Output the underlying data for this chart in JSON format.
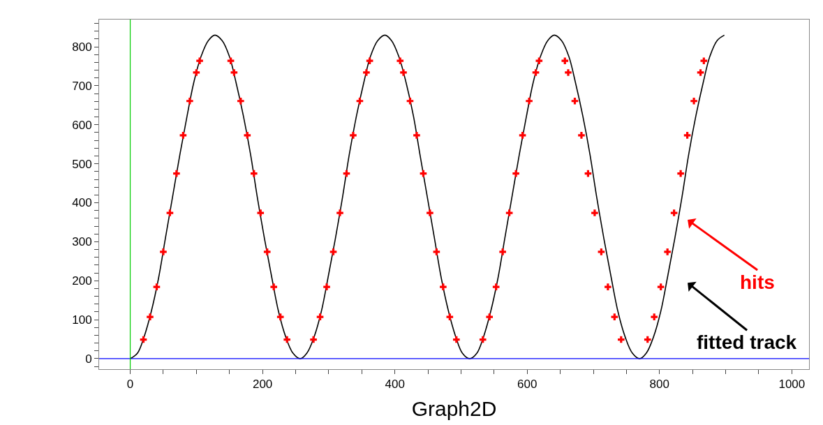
{
  "chart_data": {
    "type": "line",
    "xlabel": "Graph2D",
    "xlim": [
      -47,
      1026
    ],
    "ylim": [
      -27,
      870
    ],
    "xticks": [
      0,
      {
        "value": 50,
        "label": null
      },
      {
        "value": 100,
        "label": null
      },
      {
        "value": 150,
        "label": null
      },
      200,
      {
        "value": 250,
        "label": null
      },
      {
        "value": 300,
        "label": null
      },
      {
        "value": 350,
        "label": null
      },
      400,
      {
        "value": 450,
        "label": null
      },
      {
        "value": 500,
        "label": null
      },
      {
        "value": 550,
        "label": null
      },
      600,
      {
        "value": 650,
        "label": null
      },
      {
        "value": 700,
        "label": null
      },
      {
        "value": 750,
        "label": null
      },
      800,
      {
        "value": 850,
        "label": null
      },
      {
        "value": 900,
        "label": null
      },
      {
        "value": 950,
        "label": null
      },
      1000
    ],
    "yticks": [
      {
        "value": -20,
        "label": null
      },
      0,
      {
        "value": 20,
        "label": null
      },
      {
        "value": 40,
        "label": null
      },
      {
        "value": 60,
        "label": null
      },
      {
        "value": 80,
        "label": null
      },
      100,
      {
        "value": 120,
        "label": null
      },
      {
        "value": 140,
        "label": null
      },
      {
        "value": 160,
        "label": null
      },
      {
        "value": 180,
        "label": null
      },
      200,
      {
        "value": 220,
        "label": null
      },
      {
        "value": 240,
        "label": null
      },
      {
        "value": 260,
        "label": null
      },
      {
        "value": 280,
        "label": null
      },
      300,
      {
        "value": 320,
        "label": null
      },
      {
        "value": 340,
        "label": null
      },
      {
        "value": 360,
        "label": null
      },
      {
        "value": 380,
        "label": null
      },
      400,
      {
        "value": 420,
        "label": null
      },
      {
        "value": 440,
        "label": null
      },
      {
        "value": 460,
        "label": null
      },
      {
        "value": 480,
        "label": null
      },
      500,
      {
        "value": 520,
        "label": null
      },
      {
        "value": 540,
        "label": null
      },
      {
        "value": 560,
        "label": null
      },
      {
        "value": 580,
        "label": null
      },
      600,
      {
        "value": 620,
        "label": null
      },
      {
        "value": 640,
        "label": null
      },
      {
        "value": 660,
        "label": null
      },
      {
        "value": 680,
        "label": null
      },
      700,
      {
        "value": 720,
        "label": null
      },
      {
        "value": 740,
        "label": null
      },
      {
        "value": 760,
        "label": null
      },
      {
        "value": 780,
        "label": null
      },
      800,
      {
        "value": 820,
        "label": null
      },
      {
        "value": 840,
        "label": null
      },
      {
        "value": 860,
        "label": null
      }
    ],
    "legend": false,
    "series": [
      {
        "color": "#000000",
        "marker": "none",
        "line_style": "solid",
        "x": [
          0,
          11,
          21,
          32,
          43,
          53,
          64,
          75,
          86,
          96,
          107,
          118,
          128,
          139,
          150,
          160,
          171,
          182,
          192,
          203,
          214,
          224,
          235,
          246,
          257,
          267,
          278,
          289,
          299,
          310,
          321,
          331,
          342,
          353,
          363,
          374,
          385,
          395,
          406,
          417,
          428,
          438,
          449,
          460,
          470,
          481,
          492,
          502,
          513,
          524,
          534,
          545,
          556,
          566,
          577,
          588,
          599,
          609,
          620,
          631,
          641,
          652,
          663,
          673,
          684,
          695,
          705,
          716,
          727,
          737,
          748,
          759,
          770,
          780,
          791,
          802,
          812,
          823,
          834,
          844,
          855,
          866,
          876,
          887,
          898
        ],
        "values": [
          0,
          14,
          56,
          122,
          208,
          307,
          415,
          523,
          623,
          708,
          775,
          816,
          830,
          816,
          775,
          708,
          623,
          523,
          415,
          307,
          208,
          122,
          56,
          14,
          0,
          14,
          56,
          122,
          208,
          307,
          415,
          523,
          623,
          708,
          775,
          816,
          830,
          816,
          775,
          708,
          623,
          523,
          415,
          307,
          208,
          122,
          56,
          14,
          0,
          14,
          56,
          122,
          208,
          307,
          415,
          523,
          623,
          708,
          775,
          816,
          830,
          816,
          775,
          708,
          623,
          523,
          415,
          307,
          208,
          122,
          56,
          14,
          0,
          14,
          56,
          122,
          208,
          307,
          415,
          523,
          623,
          708,
          775,
          816,
          830
        ]
      },
      {
        "type": "scatter",
        "color": "#ff0000",
        "marker": "cross",
        "x": [
          20,
          30,
          40,
          50,
          60,
          70,
          80,
          90,
          100,
          105,
          152,
          157,
          167,
          177,
          187,
          197,
          207,
          217,
          227,
          237,
          277,
          287,
          297,
          307,
          317,
          327,
          337,
          347,
          357,
          362,
          408,
          413,
          423,
          433,
          443,
          453,
          463,
          473,
          483,
          493,
          533,
          543,
          553,
          563,
          573,
          583,
          593,
          603,
          613,
          618,
          657,
          662,
          672,
          682,
          692,
          702,
          712,
          722,
          732,
          742,
          782,
          792,
          802,
          812,
          822,
          832,
          842,
          852,
          862,
          867
        ],
        "values": [
          49,
          107,
          184,
          274,
          374,
          475,
          573,
          661,
          734,
          764,
          764,
          734,
          661,
          573,
          475,
          374,
          274,
          184,
          107,
          49,
          49,
          107,
          184,
          274,
          374,
          475,
          573,
          661,
          734,
          764,
          764,
          734,
          661,
          573,
          475,
          374,
          274,
          184,
          107,
          49,
          49,
          107,
          184,
          274,
          374,
          475,
          573,
          661,
          734,
          764,
          764,
          734,
          661,
          573,
          475,
          374,
          274,
          184,
          107,
          49,
          49,
          107,
          184,
          274,
          374,
          475,
          573,
          661,
          734,
          764
        ]
      }
    ],
    "ref_lines": [
      {
        "axis": "y",
        "value": 0,
        "color": "#0000ff"
      },
      {
        "axis": "x",
        "value": 0,
        "color": "#00cc00"
      }
    ],
    "annotations": [
      "hits",
      "fitted track"
    ]
  }
}
